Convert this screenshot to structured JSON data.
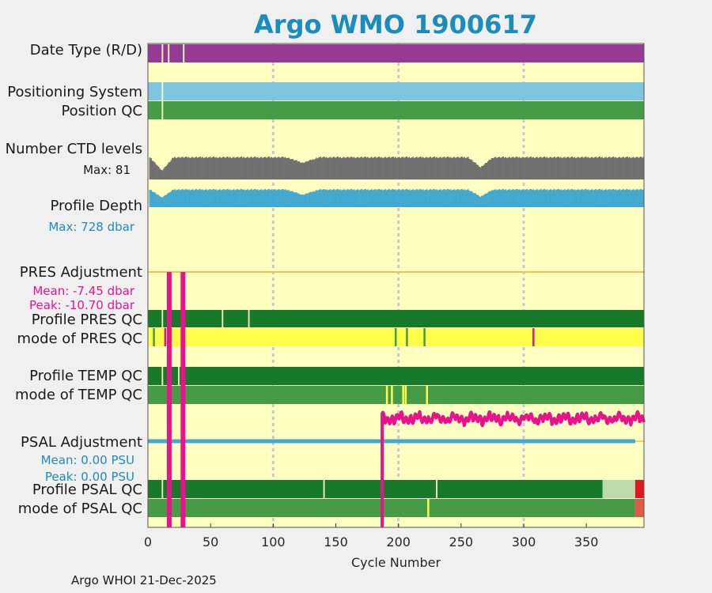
{
  "chart_data": {
    "type": "bar",
    "title": "Argo WMO 1900617",
    "xlabel": "Cycle Number",
    "xlim": [
      0,
      396
    ],
    "xticks": [
      0,
      50,
      100,
      150,
      200,
      250,
      300,
      350
    ],
    "grid": "dashed vertical lines at 100, 200, 300",
    "credit": "Argo WHOI 21-Dec-2025",
    "rows": {
      "date_type": {
        "label": "Date Type (R/D)",
        "color": "#953b95",
        "gaps": [
          11,
          16,
          28
        ]
      },
      "positioning_system": {
        "label": "Positioning System",
        "color": "#7ec6df",
        "gaps": [
          11
        ]
      },
      "position_qc": {
        "label": "Position QC",
        "color": "#469b46",
        "gaps": [
          11
        ]
      },
      "ctd_levels": {
        "label": "Number CTD levels",
        "max_label": "Max: 81",
        "max": 81,
        "color": "#707070",
        "dips": [
          [
            1,
            20,
            60
          ],
          [
            110,
            136,
            25
          ],
          [
            255,
            275,
            45
          ]
        ]
      },
      "profile_depth": {
        "label": "Profile Depth",
        "max_label": "Max:  728 dbar",
        "max": 728,
        "color": "#44a9d0",
        "dips": [
          [
            1,
            20,
            45
          ],
          [
            110,
            136,
            30
          ],
          [
            255,
            275,
            40
          ]
        ]
      },
      "pres_adjustment": {
        "label": "PRES Adjustment",
        "mean_label": "Mean: -7.45 dbar",
        "peak_label": "Peak: -10.70 dbar",
        "line_color": "#f2c14f",
        "spikes": [
          17,
          28
        ],
        "spike_color": "#e8138c"
      },
      "profile_pres_qc": {
        "label": "Profile PRES QC",
        "color": "#177a2a",
        "gaps": [
          11,
          16,
          59,
          80
        ]
      },
      "mode_pres_qc": {
        "label": "mode of PRES QC",
        "color": "#ffff4c",
        "marks": [
          [
            4,
            "#469b46"
          ],
          [
            13,
            "#e8138c"
          ],
          [
            197,
            "#469b46"
          ],
          [
            206,
            "#469b46"
          ],
          [
            220,
            "#469b46"
          ],
          [
            307,
            "#e8138c"
          ]
        ]
      },
      "profile_temp_qc": {
        "label": "Profile TEMP QC",
        "color": "#177a2a",
        "gaps": [
          11,
          16,
          24
        ]
      },
      "mode_temp_qc": {
        "label": "mode of TEMP QC",
        "color": "#469b46",
        "marks": [
          [
            190,
            "#ffff4c"
          ],
          [
            194,
            "#ffff4c"
          ],
          [
            203,
            "#ffff4c"
          ],
          [
            205,
            "#ffff4c"
          ],
          [
            222,
            "#ffff4c"
          ]
        ]
      },
      "psal_adjustment": {
        "label": "PSAL Adjustment",
        "mean_label": "Mean: 0.00 PSU",
        "peak_label": "Peak: 0.00 PSU",
        "line_color": "#44a9d0",
        "spike_color": "#e8138c",
        "step_cycle": 187,
        "band": [
          0.0,
          1.0
        ]
      },
      "profile_psal_qc": {
        "label": "Profile PSAL QC",
        "color": "#177a2a",
        "gaps": [
          11,
          16,
          140,
          230
        ],
        "tail": [
          [
            363,
            389,
            "#bcdaac"
          ],
          [
            389,
            396,
            "#e3161d"
          ]
        ]
      },
      "mode_psal_qc": {
        "label": "mode of PSAL QC",
        "color": "#469b46",
        "marks": [
          [
            223,
            "#ffff4c"
          ]
        ],
        "tail": [
          [
            389,
            396,
            "#e05a45"
          ]
        ]
      }
    }
  }
}
